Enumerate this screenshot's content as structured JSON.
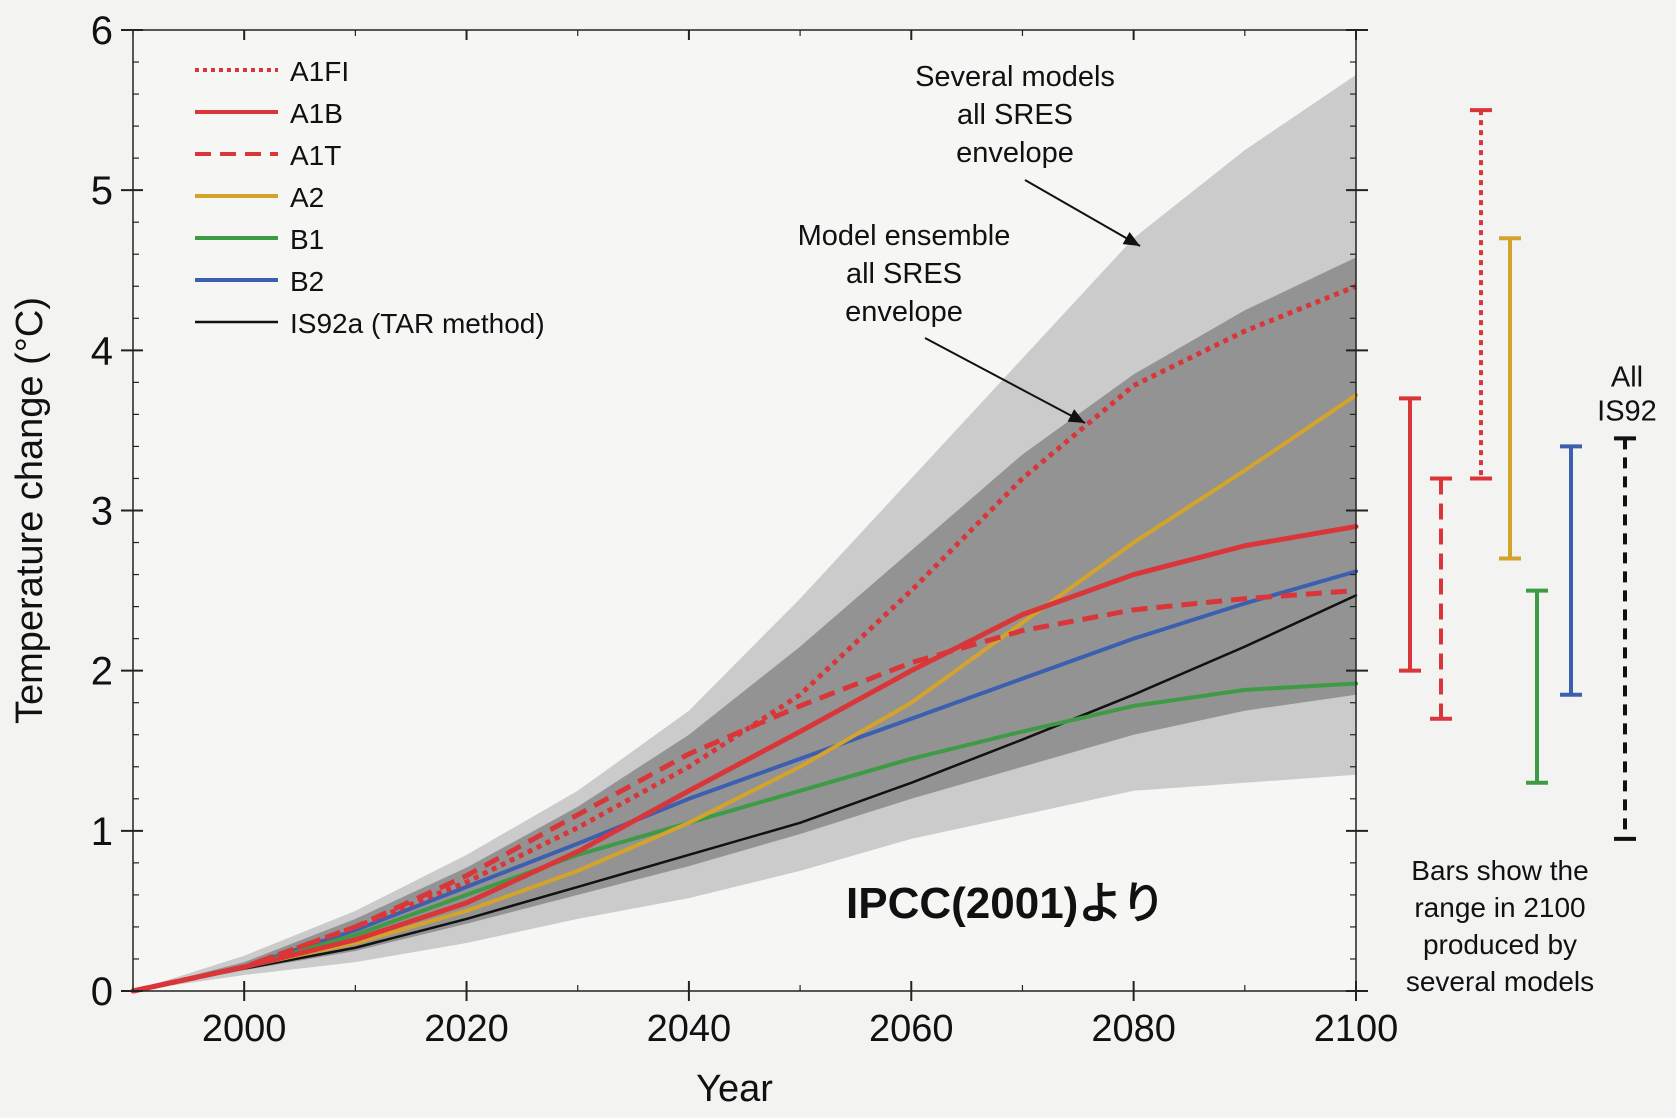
{
  "chart_data": {
    "type": "line",
    "xlabel": "Year",
    "ylabel": "Temperature change (°C)",
    "xlim": [
      1990,
      2100
    ],
    "ylim": [
      0,
      6
    ],
    "x_ticks": [
      2000,
      2020,
      2040,
      2060,
      2080,
      2100
    ],
    "y_ticks": [
      0,
      1,
      2,
      3,
      4,
      5,
      6
    ],
    "grid": false,
    "legend_position": "top-left",
    "watermark": "IPCC(2001)より",
    "x": [
      1990,
      2000,
      2010,
      2020,
      2030,
      2040,
      2050,
      2060,
      2070,
      2080,
      2090,
      2100
    ],
    "series": [
      {
        "name": "A1FI",
        "style": "dotted",
        "color": "#d9363a",
        "values": [
          0,
          0.15,
          0.4,
          0.68,
          1.02,
          1.4,
          1.85,
          2.5,
          3.2,
          3.78,
          4.12,
          4.4
        ]
      },
      {
        "name": "A1B",
        "style": "solid",
        "color": "#d9363a",
        "values": [
          0,
          0.15,
          0.32,
          0.55,
          0.87,
          1.25,
          1.62,
          2.0,
          2.35,
          2.6,
          2.78,
          2.9
        ]
      },
      {
        "name": "A1T",
        "style": "dashed",
        "color": "#d9363a",
        "values": [
          0,
          0.15,
          0.4,
          0.72,
          1.1,
          1.48,
          1.78,
          2.05,
          2.25,
          2.38,
          2.45,
          2.5
        ]
      },
      {
        "name": "A2",
        "style": "solid",
        "color": "#d4a32c",
        "values": [
          0,
          0.15,
          0.3,
          0.5,
          0.75,
          1.05,
          1.4,
          1.8,
          2.3,
          2.8,
          3.25,
          3.72
        ]
      },
      {
        "name": "B1",
        "style": "solid",
        "color": "#3e9b45",
        "values": [
          0,
          0.15,
          0.35,
          0.6,
          0.85,
          1.05,
          1.25,
          1.45,
          1.62,
          1.78,
          1.88,
          1.92
        ]
      },
      {
        "name": "B2",
        "style": "solid",
        "color": "#3c5fb0",
        "values": [
          0,
          0.15,
          0.38,
          0.65,
          0.92,
          1.2,
          1.45,
          1.7,
          1.95,
          2.2,
          2.42,
          2.62
        ]
      },
      {
        "name": "IS92a (TAR method)",
        "style": "solid",
        "color": "#111111",
        "values": [
          0,
          0.14,
          0.27,
          0.45,
          0.65,
          0.85,
          1.05,
          1.3,
          1.57,
          1.85,
          2.15,
          2.47
        ]
      }
    ],
    "envelopes": [
      {
        "label": "Several models all SRES envelope",
        "label_lines": [
          "Several models",
          "all SRES",
          "envelope"
        ],
        "color": "#c7c7c7",
        "upper": [
          0,
          0.22,
          0.5,
          0.85,
          1.25,
          1.75,
          2.45,
          3.2,
          3.95,
          4.7,
          5.25,
          5.72
        ],
        "lower": [
          0,
          0.1,
          0.18,
          0.3,
          0.45,
          0.58,
          0.75,
          0.95,
          1.1,
          1.25,
          1.3,
          1.35
        ]
      },
      {
        "label": "Model ensemble all SRES envelope",
        "label_lines": [
          "Model ensemble",
          "all SRES",
          "envelope"
        ],
        "color": "#8e8e8e",
        "upper": [
          0,
          0.18,
          0.45,
          0.77,
          1.15,
          1.6,
          2.15,
          2.75,
          3.35,
          3.85,
          4.25,
          4.58
        ],
        "lower": [
          0,
          0.13,
          0.25,
          0.42,
          0.6,
          0.78,
          0.98,
          1.2,
          1.4,
          1.6,
          1.75,
          1.85
        ]
      }
    ],
    "bars_2100": {
      "caption_lines": [
        "Bars show the",
        "range in 2100",
        "produced by",
        "several models"
      ],
      "items": [
        {
          "series": "A1B",
          "color": "#d9363a",
          "style": "solid",
          "low": 2.0,
          "high": 3.7
        },
        {
          "series": "A1T",
          "color": "#d9363a",
          "style": "dashed",
          "low": 1.7,
          "high": 3.2
        },
        {
          "series": "A1FI",
          "color": "#d9363a",
          "style": "dotted",
          "low": 3.2,
          "high": 5.5
        },
        {
          "series": "A2",
          "color": "#d4a32c",
          "style": "solid",
          "low": 2.7,
          "high": 4.7
        },
        {
          "series": "B1",
          "color": "#3e9b45",
          "style": "solid",
          "low": 1.3,
          "high": 2.5
        },
        {
          "series": "B2",
          "color": "#3c5fb0",
          "style": "solid",
          "low": 1.85,
          "high": 3.4
        },
        {
          "series": "All IS92",
          "label_lines": [
            "All",
            "IS92"
          ],
          "color": "#111111",
          "style": "dashed",
          "low": 0.95,
          "high": 3.45
        }
      ]
    }
  }
}
